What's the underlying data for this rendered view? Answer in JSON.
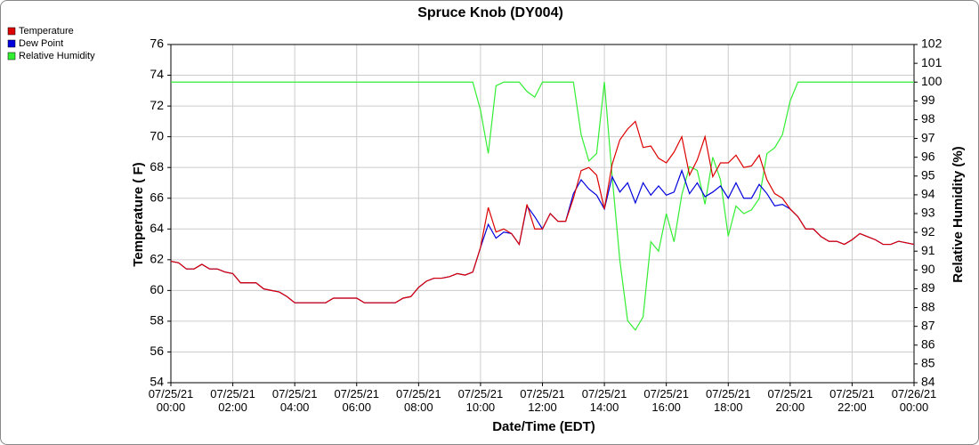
{
  "chart_data": {
    "type": "line",
    "title": "Spruce Knob (DY004)",
    "xlabel": "Date/Time (EDT)",
    "ylabel": "Temperature ( F)",
    "y2label": "Relative Humidity (%)",
    "legend": "top-left",
    "grid": true,
    "xlim": [
      0,
      24
    ],
    "xticks": [
      {
        "value": 0,
        "label": "07/25/21\n00:00"
      },
      {
        "value": 2,
        "label": "07/25/21\n02:00"
      },
      {
        "value": 4,
        "label": "07/25/21\n04:00"
      },
      {
        "value": 6,
        "label": "07/25/21\n06:00"
      },
      {
        "value": 8,
        "label": "07/25/21\n08:00"
      },
      {
        "value": 10,
        "label": "07/25/21\n10:00"
      },
      {
        "value": 12,
        "label": "07/25/21\n12:00"
      },
      {
        "value": 14,
        "label": "07/25/21\n14:00"
      },
      {
        "value": 16,
        "label": "07/25/21\n16:00"
      },
      {
        "value": 18,
        "label": "07/25/21\n18:00"
      },
      {
        "value": 20,
        "label": "07/25/21\n20:00"
      },
      {
        "value": 22,
        "label": "07/25/21\n22:00"
      },
      {
        "value": 24,
        "label": "07/26/21\n00:00"
      }
    ],
    "ylim": [
      54,
      76
    ],
    "yticks": [
      54,
      56,
      58,
      60,
      62,
      64,
      66,
      68,
      70,
      72,
      74,
      76
    ],
    "y2lim": [
      84,
      102
    ],
    "y2ticks": [
      84,
      85,
      86,
      87,
      88,
      89,
      90,
      91,
      92,
      93,
      94,
      95,
      96,
      97,
      98,
      99,
      100,
      101,
      102
    ],
    "x": [
      0,
      0.25,
      0.5,
      0.75,
      1,
      1.25,
      1.5,
      1.75,
      2,
      2.25,
      2.5,
      2.75,
      3,
      3.25,
      3.5,
      3.75,
      4,
      4.25,
      4.5,
      4.75,
      5,
      5.25,
      5.5,
      5.75,
      6,
      6.25,
      6.5,
      6.75,
      7,
      7.25,
      7.5,
      7.75,
      8,
      8.25,
      8.5,
      8.75,
      9,
      9.25,
      9.5,
      9.75,
      10,
      10.25,
      10.5,
      10.75,
      11,
      11.25,
      11.5,
      11.75,
      12,
      12.25,
      12.5,
      12.75,
      13,
      13.25,
      13.5,
      13.75,
      14,
      14.25,
      14.5,
      14.75,
      15,
      15.25,
      15.5,
      15.75,
      16,
      16.25,
      16.5,
      16.75,
      17,
      17.25,
      17.5,
      17.75,
      18,
      18.25,
      18.5,
      18.75,
      19,
      19.25,
      19.5,
      19.75,
      20,
      20.25,
      20.5,
      20.75,
      21,
      21.25,
      21.5,
      21.75,
      22,
      22.25,
      22.5,
      22.75,
      23,
      23.25,
      23.5,
      23.75,
      24
    ],
    "series": [
      {
        "name": "Temperature",
        "color": "#dd0000",
        "values": [
          61.9,
          61.8,
          61.4,
          61.4,
          61.7,
          61.4,
          61.4,
          61.2,
          61.1,
          60.5,
          60.5,
          60.5,
          60.1,
          60.0,
          59.9,
          59.6,
          59.2,
          59.2,
          59.2,
          59.2,
          59.2,
          59.5,
          59.5,
          59.5,
          59.5,
          59.2,
          59.2,
          59.2,
          59.2,
          59.2,
          59.5,
          59.6,
          60.2,
          60.6,
          60.8,
          60.8,
          60.9,
          61.1,
          61.0,
          61.2,
          62.8,
          65.4,
          63.8,
          64.0,
          63.7,
          63.0,
          65.6,
          64.0,
          64.0,
          65.0,
          64.5,
          64.5,
          66.0,
          67.8,
          68.0,
          67.5,
          65.3,
          68.2,
          69.8,
          70.5,
          71.0,
          69.3,
          69.4,
          68.6,
          68.3,
          69.0,
          70.0,
          67.5,
          68.5,
          70.0,
          67.4,
          68.3,
          68.3,
          68.8,
          68.0,
          68.1,
          68.8,
          67.2,
          66.3,
          66.0,
          65.3,
          64.8,
          64.0,
          64.0,
          63.5,
          63.2,
          63.2,
          63.0,
          63.3,
          63.7,
          63.5,
          63.3,
          63.0,
          63.0,
          63.2,
          63.1,
          63.0
        ]
      },
      {
        "name": "Dew Point",
        "color": "#0000dd",
        "values": [
          61.9,
          61.8,
          61.4,
          61.4,
          61.7,
          61.4,
          61.4,
          61.2,
          61.1,
          60.5,
          60.5,
          60.5,
          60.1,
          60.0,
          59.9,
          59.6,
          59.2,
          59.2,
          59.2,
          59.2,
          59.2,
          59.5,
          59.5,
          59.5,
          59.5,
          59.2,
          59.2,
          59.2,
          59.2,
          59.2,
          59.5,
          59.6,
          60.2,
          60.6,
          60.8,
          60.8,
          60.9,
          61.1,
          61.0,
          61.2,
          62.8,
          64.3,
          63.4,
          63.8,
          63.7,
          63.0,
          65.5,
          64.8,
          64.0,
          65.0,
          64.5,
          64.5,
          66.3,
          67.2,
          66.6,
          66.2,
          65.3,
          67.4,
          66.4,
          67.0,
          65.7,
          67.0,
          66.2,
          66.8,
          66.2,
          66.4,
          67.8,
          66.3,
          67.0,
          66.1,
          66.4,
          66.8,
          66.0,
          67.0,
          66.0,
          66.0,
          66.9,
          66.3,
          65.5,
          65.6,
          65.3,
          64.8,
          64.0,
          64.0,
          63.5,
          63.2,
          63.2,
          63.0,
          63.3,
          63.7,
          63.5,
          63.3,
          63.0,
          63.0,
          63.2,
          63.1,
          63.0
        ]
      },
      {
        "name": "Relative Humidity",
        "color": "#33ee33",
        "axis": "y2",
        "values": [
          100,
          100,
          100,
          100,
          100,
          100,
          100,
          100,
          100,
          100,
          100,
          100,
          100,
          100,
          100,
          100,
          100,
          100,
          100,
          100,
          100,
          100,
          100,
          100,
          100,
          100,
          100,
          100,
          100,
          100,
          100,
          100,
          100,
          100,
          100,
          100,
          100,
          100,
          100,
          100,
          98.5,
          96.2,
          99.8,
          100,
          100,
          100,
          99.5,
          99.2,
          100,
          100,
          100,
          100,
          100,
          97.2,
          95.8,
          96.2,
          100,
          95.0,
          90.5,
          87.3,
          86.8,
          87.5,
          91.5,
          91.0,
          93.0,
          91.5,
          94.0,
          95.5,
          95.3,
          93.5,
          96.0,
          94.8,
          91.8,
          93.4,
          93.0,
          93.2,
          93.8,
          96.2,
          96.5,
          97.2,
          99.0,
          100,
          100,
          100,
          100,
          100,
          100,
          100,
          100,
          100,
          100,
          100,
          100,
          100,
          100,
          100,
          100
        ]
      }
    ]
  }
}
